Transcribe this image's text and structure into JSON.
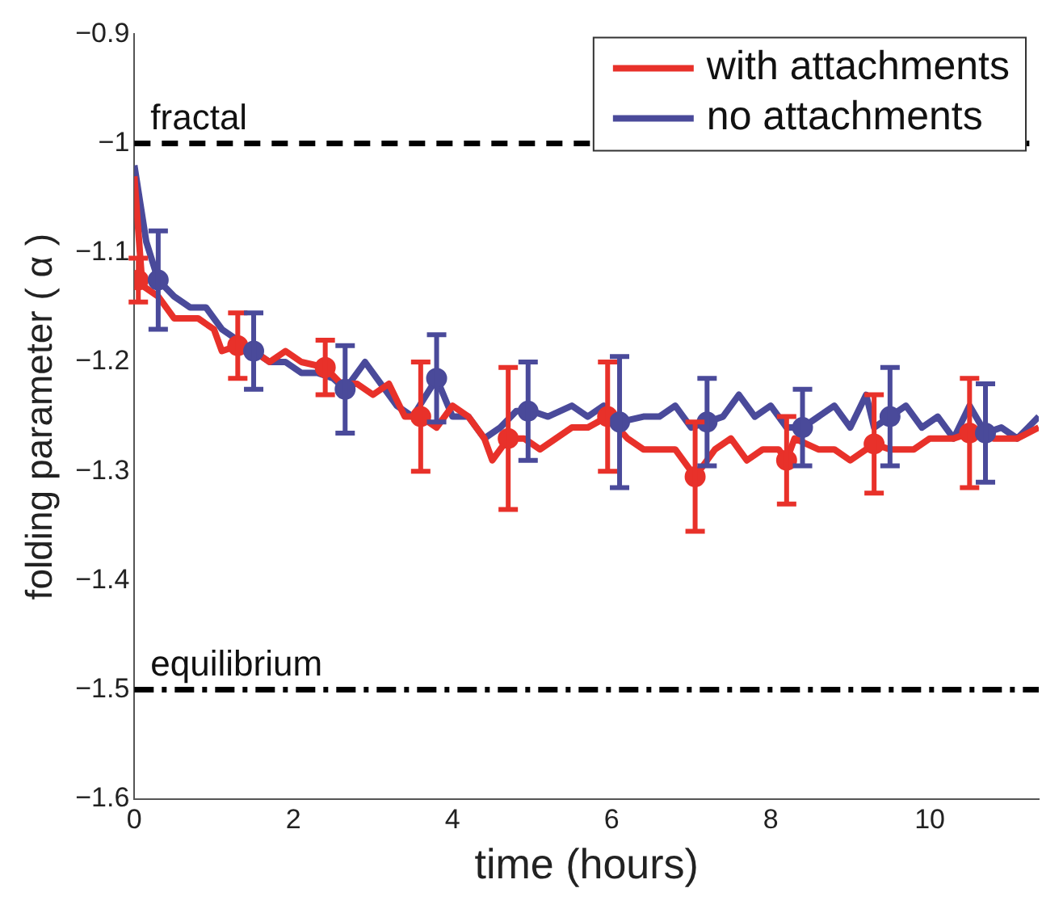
{
  "chart_data": {
    "type": "line",
    "xlabel": "time (hours)",
    "ylabel": "folding parameter ( α )",
    "xlim": [
      0,
      11.37
    ],
    "xticks": [
      0,
      2,
      4,
      6,
      8,
      10
    ],
    "ylim": [
      -1.6,
      -0.9
    ],
    "yticks": [
      -1.6,
      -1.5,
      -1.4,
      -1.3,
      -1.2,
      -1.1,
      -1,
      -0.9
    ],
    "grid": false,
    "legend": "top right",
    "ref_lines": [
      {
        "axis": "y",
        "value": -1,
        "label": "fractal",
        "color": "#000000",
        "line_style": "dashed"
      },
      {
        "axis": "y",
        "value": -1.5,
        "label": "equilibrium",
        "color": "#000000",
        "line_style": "dashdot"
      }
    ],
    "series": [
      {
        "name": "with attachments",
        "marker": "none",
        "color": "#e8312a",
        "x": [
          0,
          0.1,
          0.3,
          0.5,
          0.8,
          1.0,
          1.1,
          1.3,
          1.5,
          1.7,
          1.9,
          2.1,
          2.4,
          2.6,
          2.8,
          3.0,
          3.2,
          3.4,
          3.6,
          3.8,
          4.0,
          4.2,
          4.4,
          4.5,
          4.7,
          4.9,
          5.1,
          5.3,
          5.5,
          5.7,
          5.95,
          6.2,
          6.4,
          6.6,
          6.8,
          7.05,
          7.3,
          7.5,
          7.7,
          7.9,
          8.1,
          8.2,
          8.3,
          8.6,
          8.8,
          9.0,
          9.3,
          9.5,
          9.8,
          10.0,
          10.3,
          10.5,
          10.8,
          11.1,
          11.37
        ],
        "values": [
          -1.03,
          -1.13,
          -1.14,
          -1.16,
          -1.16,
          -1.17,
          -1.19,
          -1.185,
          -1.19,
          -1.2,
          -1.19,
          -1.2,
          -1.205,
          -1.22,
          -1.22,
          -1.23,
          -1.22,
          -1.25,
          -1.25,
          -1.26,
          -1.24,
          -1.25,
          -1.27,
          -1.29,
          -1.27,
          -1.27,
          -1.28,
          -1.27,
          -1.26,
          -1.26,
          -1.25,
          -1.27,
          -1.28,
          -1.28,
          -1.28,
          -1.305,
          -1.28,
          -1.27,
          -1.29,
          -1.28,
          -1.28,
          -1.29,
          -1.27,
          -1.28,
          -1.28,
          -1.29,
          -1.275,
          -1.28,
          -1.28,
          -1.27,
          -1.27,
          -1.265,
          -1.27,
          -1.27,
          -1.26
        ]
      },
      {
        "name": "no attachments",
        "marker": "none",
        "color": "#4a4a9a",
        "x": [
          0,
          0.15,
          0.3,
          0.5,
          0.7,
          0.9,
          1.1,
          1.3,
          1.5,
          1.7,
          1.9,
          2.1,
          2.3,
          2.5,
          2.65,
          2.9,
          3.1,
          3.3,
          3.5,
          3.8,
          4.0,
          4.2,
          4.4,
          4.6,
          4.8,
          5.0,
          5.2,
          5.5,
          5.7,
          5.9,
          6.1,
          6.4,
          6.6,
          6.8,
          7.0,
          7.2,
          7.4,
          7.6,
          7.8,
          8.0,
          8.2,
          8.4,
          8.6,
          8.8,
          9.0,
          9.2,
          9.3,
          9.5,
          9.7,
          9.9,
          10.1,
          10.3,
          10.5,
          10.7,
          10.9,
          11.1,
          11.37
        ],
        "values": [
          -1.02,
          -1.09,
          -1.125,
          -1.14,
          -1.15,
          -1.15,
          -1.17,
          -1.18,
          -1.19,
          -1.2,
          -1.2,
          -1.21,
          -1.21,
          -1.215,
          -1.225,
          -1.2,
          -1.22,
          -1.24,
          -1.25,
          -1.215,
          -1.25,
          -1.25,
          -1.27,
          -1.26,
          -1.245,
          -1.245,
          -1.25,
          -1.24,
          -1.25,
          -1.24,
          -1.255,
          -1.25,
          -1.25,
          -1.24,
          -1.26,
          -1.255,
          -1.25,
          -1.23,
          -1.25,
          -1.24,
          -1.26,
          -1.26,
          -1.25,
          -1.24,
          -1.26,
          -1.23,
          -1.26,
          -1.25,
          -1.24,
          -1.26,
          -1.25,
          -1.27,
          -1.24,
          -1.265,
          -1.26,
          -1.27,
          -1.25
        ]
      },
      {
        "type": "scatter",
        "marker": "circle",
        "color": "#e8312a",
        "x": [
          0.05,
          1.3,
          2.4,
          3.6,
          4.7,
          5.95,
          7.05,
          8.2,
          9.3,
          10.5
        ],
        "values": [
          -1.125,
          -1.185,
          -1.205,
          -1.25,
          -1.27,
          -1.25,
          -1.305,
          -1.29,
          -1.275,
          -1.265
        ],
        "errors": [
          0.02,
          0.03,
          0.025,
          0.05,
          0.065,
          0.05,
          0.05,
          0.04,
          0.045,
          0.05
        ]
      },
      {
        "type": "scatter",
        "marker": "circle",
        "color": "#4a4a9a",
        "x": [
          0.3,
          1.5,
          2.65,
          3.8,
          4.95,
          6.1,
          7.2,
          8.4,
          9.5,
          10.7
        ],
        "values": [
          -1.125,
          -1.19,
          -1.225,
          -1.215,
          -1.245,
          -1.255,
          -1.255,
          -1.26,
          -1.25,
          -1.265
        ],
        "errors": [
          0.045,
          0.035,
          0.04,
          0.04,
          0.045,
          0.06,
          0.04,
          0.035,
          0.045,
          0.045
        ]
      }
    ]
  }
}
